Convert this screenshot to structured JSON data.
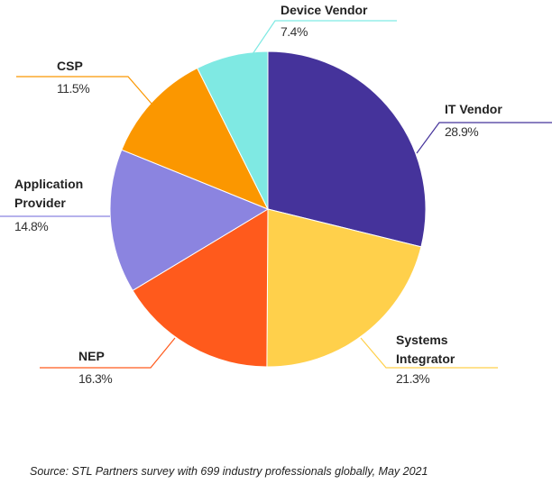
{
  "chart_data": {
    "type": "pie",
    "slices": [
      {
        "label": "IT Vendor",
        "value": 28.9,
        "display": "28.9%",
        "color": "#45339b"
      },
      {
        "label": "Systems Integrator",
        "value": 21.3,
        "display": "21.3%",
        "color": "#ffd04b"
      },
      {
        "label": "NEP",
        "value": 16.3,
        "display": "16.3%",
        "color": "#ff5a1c"
      },
      {
        "label": "Application Provider",
        "value": 14.8,
        "display": "14.8%",
        "color": "#8b84e0"
      },
      {
        "label": "CSP",
        "value": 11.5,
        "display": "11.5%",
        "color": "#fb9700"
      },
      {
        "label": "Device Vendor",
        "value": 7.4,
        "display": "7.4%",
        "color": "#7fe9e3"
      }
    ],
    "start": "top",
    "direction": "clockwise",
    "legend": "none (direct labels with leader lines)"
  },
  "source": "Source: STL Partners survey with 699 industry professionals globally, May 2021"
}
